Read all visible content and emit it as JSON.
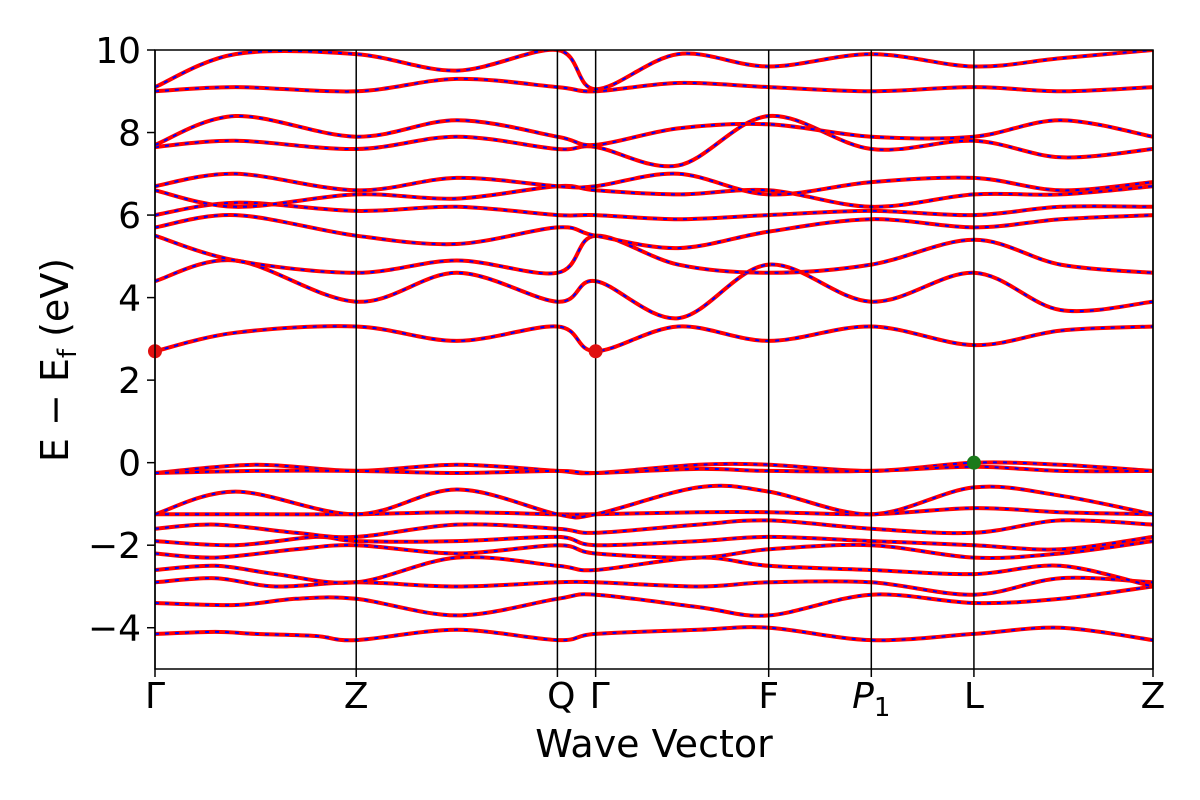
{
  "chart_data": {
    "type": "line",
    "xlabel": "Wave Vector",
    "ylabel_main": "E − E",
    "ylabel_sub": "f",
    "ylabel_unit": " (eV)",
    "ylim": [
      -5,
      10
    ],
    "yticks": [
      -4,
      -2,
      0,
      2,
      4,
      6,
      8,
      10
    ],
    "ytick_labels": [
      "−4",
      "−2",
      "0",
      "2",
      "4",
      "6",
      "8",
      "10"
    ],
    "xlim": [
      0,
      4.96
    ],
    "kpoints": [
      {
        "label": "Γ",
        "x": 0.0
      },
      {
        "label": "Z",
        "x": 1.0
      },
      {
        "label": "Q",
        "x": 2.0
      },
      {
        "label": "Γ",
        "x": 2.19
      },
      {
        "label": "F",
        "x": 3.05
      },
      {
        "label": "P",
        "sub": "1",
        "x": 3.56
      },
      {
        "label": "L",
        "x": 4.07
      },
      {
        "label": "Z",
        "x": 4.96
      }
    ],
    "series_colors": {
      "solid": "#ff0000",
      "dashed": "#0000ff"
    },
    "marker_colors": {
      "cbm": "#e01010",
      "vbm": "#1a7a1a"
    },
    "markers": [
      {
        "type": "cbm",
        "x": 0.0,
        "y": 2.7
      },
      {
        "type": "cbm",
        "x": 2.19,
        "y": 2.7
      },
      {
        "type": "vbm",
        "x": 4.07,
        "y": 0.0
      }
    ],
    "bands": [
      {
        "x": [
          0,
          0.3,
          0.5,
          0.8,
          1.0,
          1.5,
          2.0,
          2.19,
          2.7,
          3.05,
          3.56,
          4.07,
          4.5,
          4.96
        ],
        "y": [
          -4.15,
          -4.1,
          -4.15,
          -4.2,
          -4.3,
          -4.05,
          -4.3,
          -4.15,
          -4.05,
          -4.0,
          -4.3,
          -4.15,
          -4.0,
          -4.3
        ]
      },
      {
        "x": [
          0,
          0.4,
          0.7,
          1.0,
          1.5,
          2.0,
          2.19,
          2.7,
          3.05,
          3.56,
          4.07,
          4.5,
          4.96
        ],
        "y": [
          -3.4,
          -3.45,
          -3.3,
          -3.3,
          -3.7,
          -3.3,
          -3.2,
          -3.5,
          -3.7,
          -3.2,
          -3.4,
          -3.3,
          -3.0
        ]
      },
      {
        "x": [
          0,
          0.3,
          0.6,
          1.0,
          1.5,
          2.0,
          2.19,
          2.7,
          3.05,
          3.56,
          4.07,
          4.5,
          4.96
        ],
        "y": [
          -2.9,
          -2.8,
          -3.0,
          -2.9,
          -3.0,
          -2.9,
          -2.9,
          -3.0,
          -2.9,
          -2.9,
          -3.2,
          -2.8,
          -2.9
        ]
      },
      {
        "x": [
          0,
          0.3,
          0.6,
          1.0,
          1.5,
          2.0,
          2.19,
          2.7,
          3.05,
          3.56,
          4.07,
          4.5,
          4.96
        ],
        "y": [
          -2.6,
          -2.5,
          -2.7,
          -2.9,
          -2.3,
          -2.5,
          -2.6,
          -2.3,
          -2.5,
          -2.6,
          -2.7,
          -2.5,
          -3.0
        ]
      },
      {
        "x": [
          0,
          0.3,
          0.7,
          1.0,
          1.5,
          2.0,
          2.19,
          2.7,
          3.05,
          3.56,
          4.07,
          4.5,
          4.96
        ],
        "y": [
          -2.2,
          -2.3,
          -2.1,
          -2.0,
          -2.2,
          -2.0,
          -2.2,
          -2.3,
          -2.1,
          -2.0,
          -2.3,
          -2.2,
          -1.9
        ]
      },
      {
        "x": [
          0,
          0.4,
          0.8,
          1.0,
          1.5,
          2.0,
          2.19,
          2.7,
          3.05,
          3.56,
          4.07,
          4.5,
          4.96
        ],
        "y": [
          -1.9,
          -2.0,
          -1.8,
          -1.9,
          -1.9,
          -1.8,
          -2.0,
          -1.9,
          -1.8,
          -1.9,
          -2.0,
          -2.1,
          -1.8
        ]
      },
      {
        "x": [
          0,
          0.3,
          0.7,
          1.0,
          1.5,
          2.0,
          2.19,
          2.7,
          3.05,
          3.56,
          4.07,
          4.5,
          4.96
        ],
        "y": [
          -1.6,
          -1.5,
          -1.7,
          -1.8,
          -1.5,
          -1.6,
          -1.7,
          -1.5,
          -1.4,
          -1.6,
          -1.7,
          -1.4,
          -1.5
        ]
      },
      {
        "x": [
          0,
          0.5,
          1.0,
          1.5,
          2.0,
          2.19,
          2.7,
          3.05,
          3.56,
          4.07,
          4.5,
          4.96
        ],
        "y": [
          -1.25,
          -1.25,
          -1.25,
          -1.2,
          -1.25,
          -1.25,
          -1.2,
          -1.2,
          -1.25,
          -1.1,
          -1.2,
          -1.25
        ]
      },
      {
        "x": [
          0,
          0.4,
          1.0,
          1.5,
          2.0,
          2.19,
          2.7,
          3.05,
          3.56,
          4.07,
          4.5,
          4.96
        ],
        "y": [
          -1.25,
          -0.7,
          -1.25,
          -0.65,
          -1.25,
          -1.25,
          -0.6,
          -0.7,
          -1.25,
          -0.6,
          -0.8,
          -1.25
        ]
      },
      {
        "x": [
          0,
          0.5,
          1.0,
          1.5,
          2.0,
          2.19,
          2.7,
          3.05,
          3.56,
          4.07,
          4.5,
          4.96
        ],
        "y": [
          -0.25,
          -0.05,
          -0.2,
          -0.05,
          -0.2,
          -0.25,
          -0.05,
          -0.05,
          -0.2,
          0.0,
          -0.05,
          -0.2
        ]
      },
      {
        "x": [
          0,
          0.5,
          1.0,
          1.5,
          2.0,
          2.19,
          2.7,
          3.05,
          3.56,
          4.07,
          4.5,
          4.96
        ],
        "y": [
          -0.25,
          -0.2,
          -0.2,
          -0.25,
          -0.2,
          -0.25,
          -0.15,
          -0.2,
          -0.2,
          -0.1,
          -0.2,
          -0.2
        ]
      },
      {
        "x": [
          0,
          0.4,
          1.0,
          1.5,
          2.0,
          2.19,
          2.6,
          3.05,
          3.56,
          4.07,
          4.5,
          4.96
        ],
        "y": [
          2.7,
          3.15,
          3.3,
          2.95,
          3.3,
          2.7,
          3.3,
          2.95,
          3.3,
          2.85,
          3.2,
          3.3
        ]
      },
      {
        "x": [
          0,
          0.4,
          1.0,
          1.5,
          2.0,
          2.19,
          2.6,
          3.05,
          3.56,
          4.07,
          4.5,
          4.96
        ],
        "y": [
          4.4,
          4.9,
          3.9,
          4.6,
          3.9,
          4.4,
          3.5,
          4.8,
          3.9,
          4.6,
          3.7,
          3.9
        ]
      },
      {
        "x": [
          0,
          0.4,
          1.0,
          1.5,
          2.0,
          2.19,
          2.6,
          3.05,
          3.56,
          4.07,
          4.5,
          4.96
        ],
        "y": [
          5.5,
          4.9,
          4.6,
          4.9,
          4.6,
          5.5,
          4.8,
          4.6,
          4.8,
          5.4,
          4.8,
          4.6
        ]
      },
      {
        "x": [
          0,
          0.4,
          1.0,
          1.5,
          2.0,
          2.19,
          2.6,
          3.05,
          3.56,
          4.07,
          4.5,
          4.96
        ],
        "y": [
          5.7,
          6.0,
          5.5,
          5.3,
          5.7,
          5.5,
          5.2,
          5.6,
          5.9,
          5.7,
          5.9,
          6.0
        ]
      },
      {
        "x": [
          0,
          0.4,
          1.0,
          1.5,
          2.0,
          2.19,
          2.6,
          3.05,
          3.56,
          4.07,
          4.5,
          4.96
        ],
        "y": [
          6.0,
          6.3,
          6.1,
          6.2,
          6.0,
          6.0,
          5.9,
          6.0,
          6.1,
          6.0,
          6.2,
          6.2
        ]
      },
      {
        "x": [
          0,
          0.4,
          1.0,
          1.5,
          2.0,
          2.19,
          2.6,
          3.05,
          3.56,
          4.07,
          4.5,
          4.96
        ],
        "y": [
          6.6,
          6.2,
          6.5,
          6.4,
          6.7,
          6.6,
          6.5,
          6.6,
          6.2,
          6.5,
          6.5,
          6.7
        ]
      },
      {
        "x": [
          0,
          0.4,
          1.0,
          1.5,
          2.0,
          2.19,
          2.6,
          3.05,
          3.56,
          4.07,
          4.5,
          4.96
        ],
        "y": [
          6.7,
          7.0,
          6.6,
          6.9,
          6.7,
          6.7,
          7.0,
          6.5,
          6.8,
          6.9,
          6.6,
          6.8
        ]
      },
      {
        "x": [
          0,
          0.4,
          1.0,
          1.5,
          2.0,
          2.19,
          2.6,
          3.05,
          3.56,
          4.07,
          4.5,
          4.96
        ],
        "y": [
          7.65,
          7.8,
          7.6,
          7.9,
          7.6,
          7.65,
          7.2,
          8.4,
          7.6,
          7.8,
          7.4,
          7.6
        ]
      },
      {
        "x": [
          0,
          0.4,
          1.0,
          1.5,
          2.0,
          2.19,
          2.6,
          3.05,
          3.56,
          4.07,
          4.5,
          4.96
        ],
        "y": [
          7.7,
          8.4,
          7.9,
          8.3,
          7.9,
          7.7,
          8.1,
          8.2,
          7.9,
          7.9,
          8.3,
          7.9
        ]
      },
      {
        "x": [
          0,
          0.4,
          1.0,
          1.5,
          2.0,
          2.19,
          2.6,
          3.05,
          3.56,
          4.07,
          4.5,
          4.96
        ],
        "y": [
          9.0,
          9.1,
          9.0,
          9.3,
          9.1,
          9.0,
          9.2,
          9.1,
          9.0,
          9.1,
          9.0,
          9.1
        ]
      },
      {
        "x": [
          0,
          0.4,
          1.0,
          1.5,
          2.0,
          2.19,
          2.6,
          3.05,
          3.56,
          4.07,
          4.5,
          4.96
        ],
        "y": [
          9.1,
          9.9,
          9.9,
          9.5,
          10.0,
          9.05,
          9.9,
          9.6,
          9.9,
          9.6,
          9.8,
          10.0
        ]
      }
    ]
  }
}
